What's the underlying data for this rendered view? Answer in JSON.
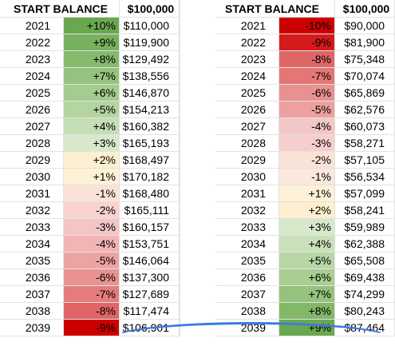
{
  "left_sheet": {
    "header": {
      "label": "START BALANCE",
      "start_balance": "$100,000"
    },
    "rows": [
      {
        "year": "2021",
        "pct": "+10%",
        "balance": "$110,000",
        "color": "#6aa84f"
      },
      {
        "year": "2022",
        "pct": "+9%",
        "balance": "$119,900",
        "color": "#78b15e"
      },
      {
        "year": "2023",
        "pct": "+8%",
        "balance": "$129,492",
        "color": "#86ba6d"
      },
      {
        "year": "2024",
        "pct": "+7%",
        "balance": "$138,556",
        "color": "#95c37d"
      },
      {
        "year": "2025",
        "pct": "+6%",
        "balance": "$146,870",
        "color": "#a4cc8e"
      },
      {
        "year": "2026",
        "pct": "+5%",
        "balance": "$154,213",
        "color": "#b4d5a1"
      },
      {
        "year": "2027",
        "pct": "+4%",
        "balance": "$160,382",
        "color": "#c5deb5"
      },
      {
        "year": "2028",
        "pct": "+3%",
        "balance": "$165,193",
        "color": "#d7e8cb"
      },
      {
        "year": "2029",
        "pct": "+2%",
        "balance": "$168,497",
        "color": "#fdefd0"
      },
      {
        "year": "2030",
        "pct": "+1%",
        "balance": "$170,182",
        "color": "#fdf1d6"
      },
      {
        "year": "2031",
        "pct": "-1%",
        "balance": "$168,480",
        "color": "#fbe2d6"
      },
      {
        "year": "2032",
        "pct": "-2%",
        "balance": "$165,111",
        "color": "#f8d3cf"
      },
      {
        "year": "2033",
        "pct": "-3%",
        "balance": "$160,157",
        "color": "#f5c4c4"
      },
      {
        "year": "2034",
        "pct": "-4%",
        "balance": "$153,751",
        "color": "#f2b4b4"
      },
      {
        "year": "2035",
        "pct": "-5%",
        "balance": "$146,064",
        "color": "#eea3a3"
      },
      {
        "year": "2036",
        "pct": "-6%",
        "balance": "$137,300",
        "color": "#ea9292"
      },
      {
        "year": "2037",
        "pct": "-7%",
        "balance": "$127,689",
        "color": "#e47c7c"
      },
      {
        "year": "2038",
        "pct": "-8%",
        "balance": "$117,474",
        "color": "#e06666"
      },
      {
        "year": "2039",
        "pct": "-9%",
        "balance": "$106,901",
        "color": "#cc0000"
      }
    ]
  },
  "right_sheet": {
    "header": {
      "label": "START BALANCE",
      "start_balance": "$100,000"
    },
    "rows": [
      {
        "year": "2021",
        "pct": "-10%",
        "balance": "$90,000",
        "color": "#cc0000"
      },
      {
        "year": "2022",
        "pct": "-9%",
        "balance": "$81,900",
        "color": "#d41a1a"
      },
      {
        "year": "2023",
        "pct": "-8%",
        "balance": "$75,348",
        "color": "#e06666"
      },
      {
        "year": "2024",
        "pct": "-7%",
        "balance": "$70,074",
        "color": "#e47676"
      },
      {
        "year": "2025",
        "pct": "-6%",
        "balance": "$65,869",
        "color": "#e99191"
      },
      {
        "year": "2026",
        "pct": "-5%",
        "balance": "$62,576",
        "color": "#eda0a0"
      },
      {
        "year": "2027",
        "pct": "-4%",
        "balance": "$60,073",
        "color": "#f4c7c7"
      },
      {
        "year": "2028",
        "pct": "-3%",
        "balance": "$58,271",
        "color": "#f6cece"
      },
      {
        "year": "2029",
        "pct": "-2%",
        "balance": "$57,105",
        "color": "#fbe2d6"
      },
      {
        "year": "2030",
        "pct": "-1%",
        "balance": "$56,534",
        "color": "#fce7dc"
      },
      {
        "year": "2031",
        "pct": "+1%",
        "balance": "$57,099",
        "color": "#fdf1d6"
      },
      {
        "year": "2032",
        "pct": "+2%",
        "balance": "$58,241",
        "color": "#fdefd0"
      },
      {
        "year": "2033",
        "pct": "+3%",
        "balance": "$59,989",
        "color": "#d7e8cb"
      },
      {
        "year": "2034",
        "pct": "+4%",
        "balance": "$62,388",
        "color": "#c9e1ba"
      },
      {
        "year": "2035",
        "pct": "+5%",
        "balance": "$65,508",
        "color": "#b7d7a5"
      },
      {
        "year": "2036",
        "pct": "+6%",
        "balance": "$69,438",
        "color": "#a8ce92"
      },
      {
        "year": "2037",
        "pct": "+7%",
        "balance": "$74,299",
        "color": "#95c37d"
      },
      {
        "year": "2038",
        "pct": "+8%",
        "balance": "$80,243",
        "color": "#82b868"
      },
      {
        "year": "2039",
        "pct": "+9%",
        "balance": "$87,464",
        "color": "#6aa84f"
      }
    ]
  }
}
